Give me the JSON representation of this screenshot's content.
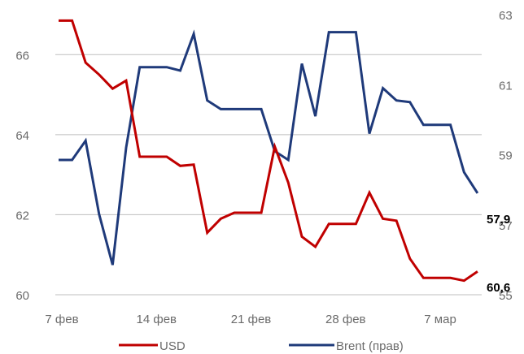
{
  "chart_data": {
    "type": "line",
    "x": [
      "7 фев",
      "8 фев",
      "9 фев",
      "10 фев",
      "11 фев",
      "12 фев",
      "13 фев",
      "14 фев",
      "15 фев",
      "16 фев",
      "17 фев",
      "18 фев",
      "19 фев",
      "20 фев",
      "21 фев",
      "22 фев",
      "23 фев",
      "24 фев",
      "25 фев",
      "26 фев",
      "27 фев",
      "28 фев",
      "1 мар",
      "2 мар",
      "3 мар",
      "4 мар",
      "5 мар",
      "6 мар",
      "7 мар",
      "8 мар",
      "9 мар",
      "10 мар"
    ],
    "x_tick_labels": [
      "7 фев",
      "14 фев",
      "21 фев",
      "28 фев",
      "7 мар"
    ],
    "left_axis": {
      "ylim": [
        60,
        67
      ],
      "tick_labels": [
        "60",
        "62",
        "64",
        "66"
      ],
      "tick_values": [
        60,
        62,
        64,
        66
      ]
    },
    "right_axis": {
      "ylim": [
        55,
        63
      ],
      "tick_labels": [
        "55",
        "57",
        "59",
        "61",
        "63"
      ],
      "tick_values": [
        55,
        57,
        59,
        61,
        63
      ]
    },
    "grid": true,
    "legend_position": "bottom",
    "series": [
      {
        "name": "USD",
        "axis": "left",
        "color": "#c00000",
        "values": [
          66.85,
          66.85,
          65.8,
          65.5,
          65.15,
          65.35,
          63.45,
          63.45,
          63.45,
          63.22,
          63.25,
          61.55,
          61.9,
          62.05,
          62.05,
          62.05,
          63.7,
          62.8,
          61.45,
          61.2,
          61.77,
          61.77,
          61.77,
          62.55,
          61.9,
          61.85,
          60.9,
          60.42,
          60.42,
          60.42,
          60.35,
          60.58
        ],
        "end_label": "60,6"
      },
      {
        "name": "Brent (прав)",
        "axis": "right",
        "color": "#1f3a7a",
        "values": [
          58.85,
          58.85,
          59.4,
          57.3,
          55.85,
          59.2,
          61.5,
          61.5,
          61.5,
          61.4,
          62.45,
          60.55,
          60.3,
          60.3,
          60.3,
          60.3,
          59.1,
          58.85,
          61.6,
          60.1,
          62.5,
          62.5,
          62.5,
          59.6,
          60.9,
          60.55,
          60.5,
          59.85,
          59.85,
          59.85,
          58.5,
          57.9
        ],
        "end_label": "57,9"
      }
    ]
  }
}
